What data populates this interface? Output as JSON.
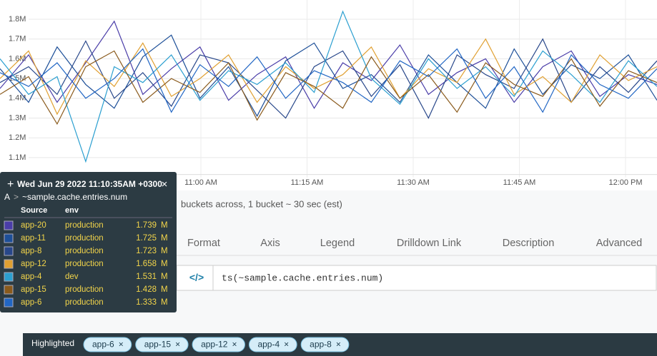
{
  "chart_data": {
    "type": "line",
    "ylim": [
      1000000,
      1850000
    ],
    "yticks": [
      {
        "value": 1100000,
        "label": "1.1M"
      },
      {
        "value": 1200000,
        "label": "1.2M"
      },
      {
        "value": 1300000,
        "label": "1.3M"
      },
      {
        "value": 1400000,
        "label": "1.4M"
      },
      {
        "value": 1500000,
        "label": "1.5M"
      },
      {
        "value": 1600000,
        "label": "1.6M"
      },
      {
        "value": 1700000,
        "label": "1.7M"
      },
      {
        "value": 1800000,
        "label": "1.8M"
      }
    ],
    "xticks": [
      "11:00 AM",
      "11:15 AM",
      "11:30 AM",
      "11:45 AM",
      "12:00 PM"
    ],
    "grid": true,
    "series": [
      {
        "name": "app-20",
        "color": "#4a3da8",
        "values": [
          1450000,
          1620000,
          1380000,
          1580000,
          1790000,
          1420000,
          1550000,
          1660000,
          1390000,
          1520000,
          1610000,
          1350000,
          1580000,
          1490000,
          1670000,
          1420000,
          1530000,
          1600000,
          1380000,
          1560000,
          1640000,
          1410000,
          1520000,
          1470000
        ]
      },
      {
        "name": "app-11",
        "color": "#1d4f98",
        "values": [
          1550000,
          1380000,
          1660000,
          1470000,
          1350000,
          1610000,
          1720000,
          1400000,
          1560000,
          1310000,
          1590000,
          1680000,
          1450000,
          1520000,
          1380000,
          1620000,
          1480000,
          1350000,
          1650000,
          1420000,
          1570000,
          1500000,
          1620000,
          1390000
        ]
      },
      {
        "name": "app-8",
        "color": "#28478a",
        "values": [
          1480000,
          1560000,
          1420000,
          1690000,
          1400000,
          1530000,
          1360000,
          1620000,
          1580000,
          1440000,
          1300000,
          1560000,
          1640000,
          1410000,
          1570000,
          1300000,
          1620000,
          1520000,
          1450000,
          1700000,
          1380000,
          1560000,
          1430000,
          1590000
        ]
      },
      {
        "name": "app-12",
        "color": "#e0a032",
        "values": [
          1500000,
          1640000,
          1320000,
          1590000,
          1460000,
          1680000,
          1410000,
          1500000,
          1620000,
          1380000,
          1560000,
          1450000,
          1520000,
          1660000,
          1400000,
          1550000,
          1480000,
          1700000,
          1420000,
          1510000,
          1380000,
          1620000,
          1490000,
          1560000
        ]
      },
      {
        "name": "app-4",
        "color": "#2b9fd0",
        "values": [
          1600000,
          1420000,
          1510000,
          1080000,
          1560000,
          1480000,
          1620000,
          1390000,
          1540000,
          1470000,
          1580000,
          1430000,
          1840000,
          1500000,
          1370000,
          1600000,
          1450000,
          1560000,
          1410000,
          1640000,
          1520000,
          1380000,
          1590000,
          1460000
        ]
      },
      {
        "name": "app-15",
        "color": "#8a5a1c",
        "values": [
          1420000,
          1510000,
          1270000,
          1560000,
          1640000,
          1380000,
          1500000,
          1430000,
          1580000,
          1290000,
          1530000,
          1460000,
          1350000,
          1610000,
          1400000,
          1520000,
          1330000,
          1580000,
          1470000,
          1410000,
          1600000,
          1360000,
          1540000,
          1480000
        ]
      },
      {
        "name": "app-6",
        "color": "#2166c4",
        "values": [
          1530000,
          1460000,
          1580000,
          1400000,
          1500000,
          1650000,
          1330000,
          1570000,
          1460000,
          1610000,
          1400000,
          1540000,
          1480000,
          1380000,
          1590000,
          1510000,
          1650000,
          1400000,
          1560000,
          1330000,
          1620000,
          1470000,
          1400000,
          1550000
        ]
      }
    ]
  },
  "tooltip": {
    "title": "Wed Jun 29 2022 11:10:35AM +0300",
    "label": "A",
    "query": "~sample.cache.entries.num",
    "columns": [
      "Source",
      "env"
    ],
    "rows": [
      {
        "source": "app-20",
        "env": "production",
        "value": "1.739",
        "unit": "M"
      },
      {
        "source": "app-11",
        "env": "production",
        "value": "1.725",
        "unit": "M"
      },
      {
        "source": "app-8",
        "env": "production",
        "value": "1.723",
        "unit": "M"
      },
      {
        "source": "app-12",
        "env": "production",
        "value": "1.658",
        "unit": "M"
      },
      {
        "source": "app-4",
        "env": "dev",
        "value": "1.531",
        "unit": "M"
      },
      {
        "source": "app-15",
        "env": "production",
        "value": "1.428",
        "unit": "M"
      },
      {
        "source": "app-6",
        "env": "production",
        "value": "1.333",
        "unit": "M"
      }
    ]
  },
  "info": "buckets across, 1 bucket ~ 30 sec (est)",
  "tabs": [
    "Format",
    "Axis",
    "Legend",
    "Drilldown Link",
    "Description",
    "Advanced"
  ],
  "query_input": "ts(~sample.cache.entries.num)",
  "highlighted": {
    "label": "Highlighted",
    "chips": [
      "app-6",
      "app-15",
      "app-12",
      "app-4",
      "app-8"
    ]
  }
}
